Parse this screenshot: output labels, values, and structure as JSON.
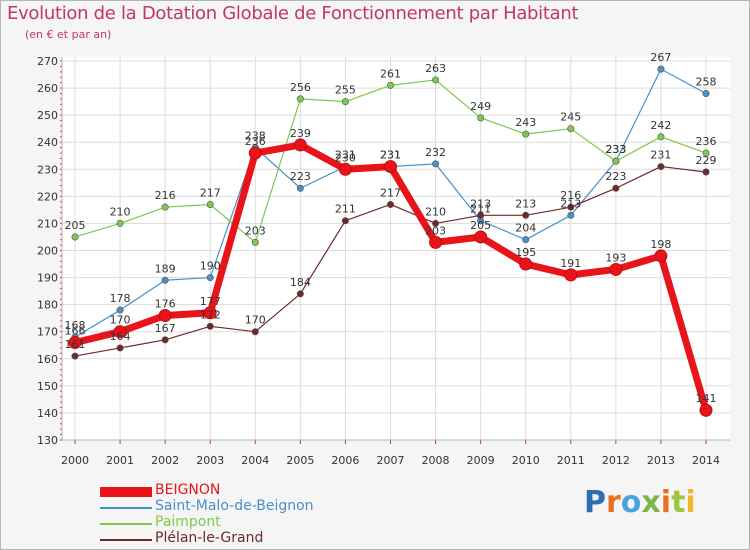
{
  "title": "Evolution de la Dotation Globale de Fonctionnement par Habitant",
  "subtitle": "(en € et par an)",
  "logo": {
    "text": "Proxiti",
    "colors": [
      "#2f6db5",
      "#e8711f",
      "#4aa3df",
      "#7ab648",
      "#e8711f",
      "#9ac53c",
      "#f2b82d"
    ]
  },
  "chart_data": {
    "type": "line",
    "x": [
      "2000",
      "2001",
      "2002",
      "2003",
      "2004",
      "2005",
      "2006",
      "2007",
      "2008",
      "2009",
      "2010",
      "2011",
      "2012",
      "2013",
      "2014"
    ],
    "ylim": [
      130,
      270
    ],
    "yticks": [
      130,
      140,
      150,
      160,
      170,
      180,
      190,
      200,
      210,
      220,
      230,
      240,
      250,
      260,
      270
    ],
    "grid": true,
    "legend_position": "bottom-left",
    "series": [
      {
        "name": "BEIGNON",
        "color": "#e8141a",
        "width": 7,
        "values": [
          166,
          170,
          176,
          177,
          236,
          239,
          230,
          231,
          203,
          205,
          195,
          191,
          193,
          198,
          141
        ],
        "labels": [
          "166",
          "170",
          "176",
          "177",
          "236",
          "239",
          "230",
          "231",
          "203",
          "205",
          "195",
          "191",
          "193",
          "198",
          "141"
        ]
      },
      {
        "name": "Saint-Malo-de-Beignon",
        "color": "#4a90c8",
        "width": 1.2,
        "values": [
          168,
          178,
          189,
          190,
          238,
          223,
          231,
          231,
          232,
          211,
          204,
          213,
          233,
          267,
          258
        ],
        "labels": [
          "168",
          "178",
          "189",
          "190",
          "238",
          "223",
          "231",
          "231",
          "232",
          "211",
          "204",
          "213",
          "233",
          "267",
          "258"
        ]
      },
      {
        "name": "Paimpont",
        "color": "#7ec850",
        "width": 1.2,
        "values": [
          205,
          210,
          216,
          217,
          203,
          256,
          255,
          261,
          263,
          249,
          243,
          245,
          233,
          242,
          236
        ],
        "labels": [
          "205",
          "210",
          "216",
          "217",
          "203",
          "256",
          "255",
          "261",
          "263",
          "249",
          "243",
          "245",
          "233",
          "242",
          "236"
        ]
      },
      {
        "name": "Plélan-le-Grand",
        "color": "#6e2a2a",
        "width": 1.2,
        "values": [
          161,
          164,
          167,
          172,
          170,
          184,
          211,
          217,
          210,
          213,
          213,
          216,
          223,
          231,
          229
        ],
        "labels": [
          "161",
          "164",
          "167",
          "172",
          "170",
          "184",
          "211",
          "217",
          "210",
          "213",
          "213",
          "216",
          "223",
          "231",
          "229"
        ]
      }
    ]
  }
}
